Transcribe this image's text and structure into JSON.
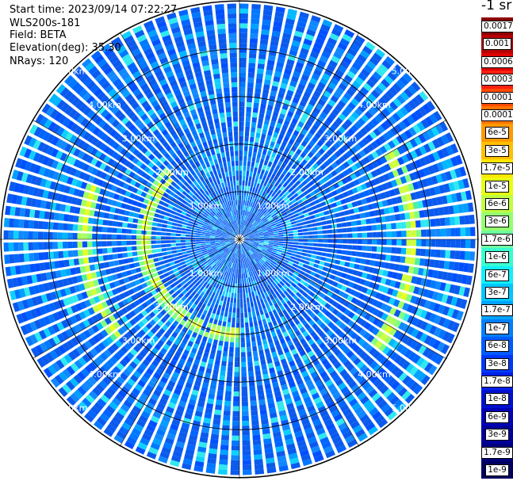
{
  "info": {
    "start_time": "Start time: 2023/09/14 07:22:27",
    "instrument": "WLS200s-181",
    "field": "Field: BETA",
    "elevation": "Elevation(deg): 35.30",
    "nrays": "NRays: 120"
  },
  "colorbar": {
    "unit": "-1 sr",
    "ticks": [
      "0.0017",
      "0.001",
      "0.0006",
      "0.0003",
      "0.00017",
      "0.0001",
      "6e-5",
      "3e-5",
      "1.7e-5",
      "1e-5",
      "6e-6",
      "3e-6",
      "1.7e-6",
      "1e-6",
      "6e-7",
      "3e-7",
      "1.7e-7",
      "1e-7",
      "6e-8",
      "3e-8",
      "1.7e-8",
      "1e-8",
      "6e-9",
      "3e-9",
      "1.7e-9",
      "1e-9"
    ],
    "colors": [
      "#8b0000",
      "#b80000",
      "#e00000",
      "#ff2010",
      "#ff4a00",
      "#ff7400",
      "#ff9a00",
      "#ffc000",
      "#ffe600",
      "#e8ff10",
      "#c0ff40",
      "#94ff70",
      "#6effa0",
      "#38ffd0",
      "#10f0ff",
      "#00c8ff",
      "#00a4ff",
      "#0080ff",
      "#005cff",
      "#0038ff",
      "#0020e8",
      "#0010d0",
      "#0000b8",
      "#00009a",
      "#000080",
      "#000060"
    ]
  },
  "chart_data": {
    "type": "heatmap",
    "projection": "polar (PPI scan)",
    "field": "BETA",
    "elevation_deg": 35.3,
    "nrays": 120,
    "range_rings_km": [
      1.0,
      2.0,
      3.0,
      4.0,
      5.0
    ],
    "ring_labels": [
      "1.00km",
      "2.00km",
      "3.00km",
      "4.00km",
      "5.00km"
    ],
    "max_range_km": 5.1,
    "features": [
      {
        "ring_km": 2.0,
        "sector_deg": [
          180,
          315
        ],
        "approx_value": "1e-5"
      },
      {
        "ring_km": 3.7,
        "sector_deg": [
          60,
          130
        ],
        "approx_value": "1.7e-6"
      },
      {
        "ring_km": 3.3,
        "sector_deg": [
          230,
          290
        ],
        "approx_value": "1.7e-6"
      }
    ]
  }
}
